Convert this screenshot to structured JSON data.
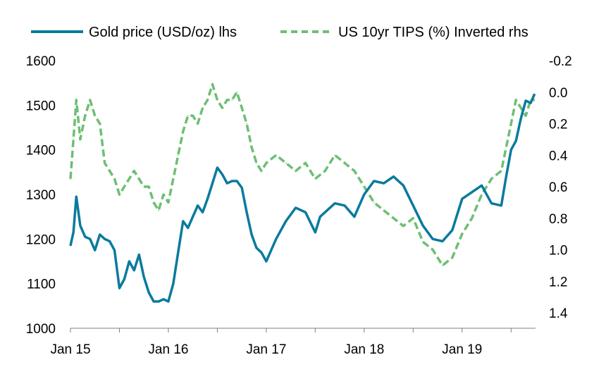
{
  "chart_data": {
    "type": "line",
    "title": "",
    "xlabel": "",
    "ylabel_left": "",
    "ylabel_right": "",
    "x_tick_labels": [
      "Jan 15",
      "Jan 16",
      "Jan 17",
      "Jan 18",
      "Jan 19"
    ],
    "x_tick_dates": [
      2015.0,
      2016.0,
      2017.0,
      2018.0,
      2019.0
    ],
    "x_range": [
      2015.0,
      2019.75
    ],
    "ylim_left": [
      1000,
      1600
    ],
    "yticks_left": [
      1000,
      1100,
      1200,
      1300,
      1400,
      1500,
      1600
    ],
    "ylim_right": [
      1.4,
      -0.2
    ],
    "yticks_right": [
      -0.2,
      0.0,
      0.2,
      0.4,
      0.6,
      0.8,
      1.0,
      1.2,
      1.4
    ],
    "right_tick_labels": [
      "-0.2",
      "0.0",
      "0.2",
      "0.4",
      "0.6",
      "0.8",
      "1.0",
      "1.2",
      "1.4"
    ],
    "legend_position": "top",
    "series": [
      {
        "name": "Gold price (USD/oz) lhs",
        "axis": "left",
        "color": "#0a7a9e",
        "style": "solid",
        "x": [
          2015.0,
          2015.03,
          2015.06,
          2015.1,
          2015.15,
          2015.2,
          2015.25,
          2015.3,
          2015.35,
          2015.4,
          2015.45,
          2015.5,
          2015.55,
          2015.6,
          2015.65,
          2015.7,
          2015.75,
          2015.8,
          2015.85,
          2015.9,
          2015.95,
          2016.0,
          2016.05,
          2016.1,
          2016.15,
          2016.2,
          2016.3,
          2016.35,
          2016.4,
          2016.45,
          2016.5,
          2016.55,
          2016.6,
          2016.65,
          2016.7,
          2016.75,
          2016.8,
          2016.85,
          2016.9,
          2016.95,
          2017.0,
          2017.1,
          2017.2,
          2017.3,
          2017.4,
          2017.5,
          2017.55,
          2017.6,
          2017.7,
          2017.8,
          2017.9,
          2018.0,
          2018.1,
          2018.2,
          2018.3,
          2018.4,
          2018.5,
          2018.6,
          2018.7,
          2018.8,
          2018.9,
          2019.0,
          2019.1,
          2019.2,
          2019.3,
          2019.4,
          2019.45,
          2019.5,
          2019.55,
          2019.6,
          2019.65,
          2019.7,
          2019.74
        ],
        "values": [
          1185,
          1215,
          1295,
          1230,
          1205,
          1200,
          1175,
          1210,
          1200,
          1195,
          1175,
          1090,
          1110,
          1150,
          1130,
          1165,
          1115,
          1080,
          1060,
          1060,
          1065,
          1060,
          1100,
          1170,
          1240,
          1225,
          1275,
          1260,
          1290,
          1325,
          1360,
          1345,
          1325,
          1330,
          1330,
          1315,
          1260,
          1210,
          1180,
          1170,
          1150,
          1200,
          1240,
          1270,
          1260,
          1215,
          1250,
          1260,
          1280,
          1275,
          1250,
          1300,
          1330,
          1325,
          1340,
          1320,
          1275,
          1230,
          1200,
          1195,
          1220,
          1290,
          1305,
          1320,
          1280,
          1275,
          1340,
          1400,
          1420,
          1470,
          1510,
          1505,
          1525
        ]
      },
      {
        "name": "US 10yr TIPS (%) Inverted rhs",
        "axis": "right",
        "color": "#6dbf73",
        "style": "dashed",
        "x": [
          2015.0,
          2015.03,
          2015.06,
          2015.1,
          2015.15,
          2015.2,
          2015.25,
          2015.3,
          2015.35,
          2015.4,
          2015.45,
          2015.5,
          2015.55,
          2015.6,
          2015.65,
          2015.7,
          2015.75,
          2015.8,
          2015.85,
          2015.9,
          2015.95,
          2016.0,
          2016.05,
          2016.1,
          2016.15,
          2016.2,
          2016.25,
          2016.3,
          2016.35,
          2016.4,
          2016.45,
          2016.5,
          2016.55,
          2016.6,
          2016.65,
          2016.7,
          2016.75,
          2016.8,
          2016.85,
          2016.9,
          2016.95,
          2017.0,
          2017.1,
          2017.2,
          2017.3,
          2017.4,
          2017.5,
          2017.6,
          2017.7,
          2017.8,
          2017.9,
          2018.0,
          2018.1,
          2018.2,
          2018.3,
          2018.4,
          2018.5,
          2018.6,
          2018.7,
          2018.8,
          2018.9,
          2019.0,
          2019.1,
          2019.2,
          2019.3,
          2019.4,
          2019.5,
          2019.55,
          2019.6,
          2019.65,
          2019.7,
          2019.74
        ],
        "values": [
          0.55,
          0.3,
          0.05,
          0.3,
          0.15,
          0.05,
          0.15,
          0.2,
          0.45,
          0.5,
          0.55,
          0.65,
          0.6,
          0.55,
          0.5,
          0.55,
          0.6,
          0.6,
          0.7,
          0.75,
          0.65,
          0.7,
          0.55,
          0.4,
          0.25,
          0.15,
          0.15,
          0.2,
          0.1,
          0.05,
          -0.05,
          0.05,
          0.1,
          0.05,
          0.05,
          0.0,
          0.1,
          0.2,
          0.35,
          0.45,
          0.5,
          0.45,
          0.4,
          0.45,
          0.5,
          0.45,
          0.55,
          0.5,
          0.4,
          0.45,
          0.5,
          0.6,
          0.7,
          0.75,
          0.8,
          0.85,
          0.8,
          0.95,
          1.0,
          1.1,
          1.05,
          0.9,
          0.8,
          0.65,
          0.55,
          0.5,
          0.2,
          0.05,
          0.1,
          0.15,
          0.05,
          0.05
        ]
      }
    ]
  }
}
